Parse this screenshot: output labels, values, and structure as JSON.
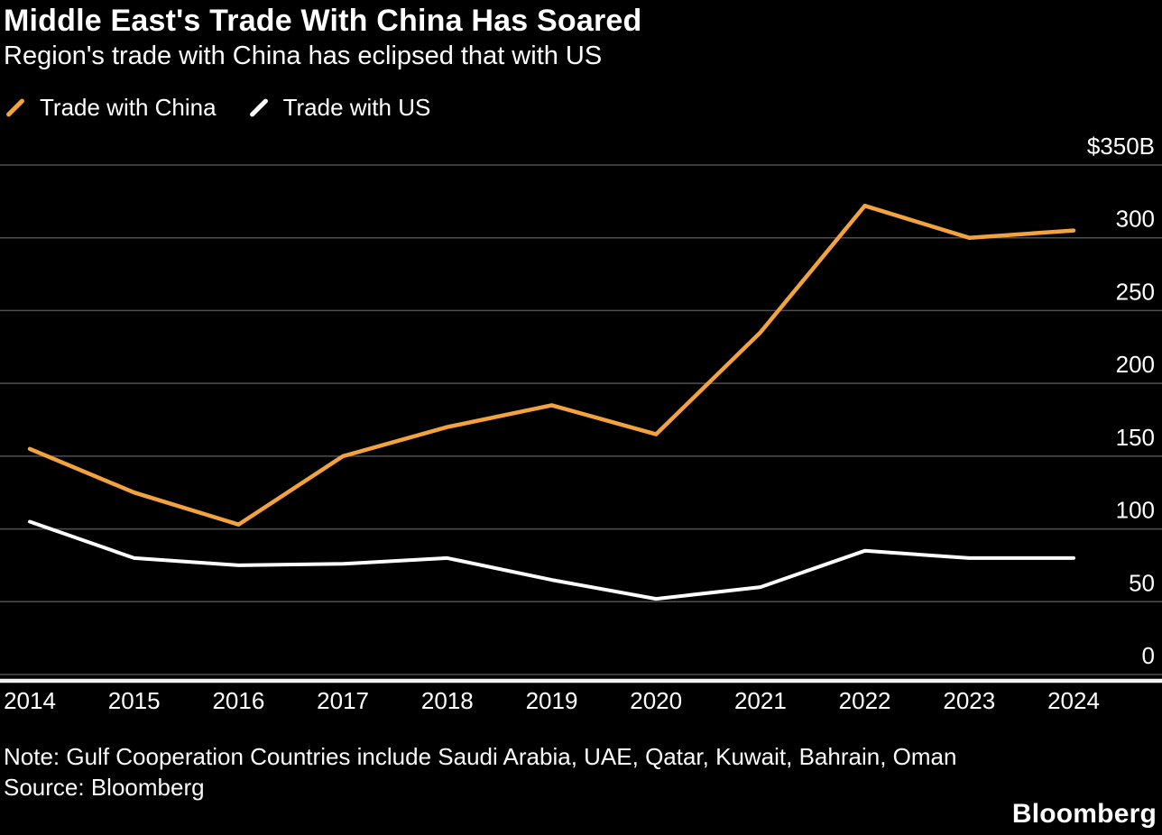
{
  "header": {
    "title": "Middle East's Trade With China Has Soared",
    "subtitle": "Region's trade with China has eclipsed that with US"
  },
  "legend": {
    "items": [
      {
        "label": "Trade with China",
        "color": "#F2A23E"
      },
      {
        "label": "Trade with US",
        "color": "#FFFFFF"
      }
    ]
  },
  "chart_data": {
    "type": "line",
    "title": "Middle East's Trade With China Has Soared",
    "subtitle": "Region's trade with China has eclipsed that with US",
    "xlabel": "",
    "ylabel": "",
    "unit": "$B",
    "grid": true,
    "legend_position": "top-left",
    "y_axis_side": "right",
    "ylim": [
      0,
      350
    ],
    "x": [
      2014,
      2015,
      2016,
      2017,
      2018,
      2019,
      2020,
      2021,
      2022,
      2023,
      2024
    ],
    "series": [
      {
        "name": "Trade with China",
        "color": "#F2A23E",
        "values": [
          155,
          125,
          103,
          150,
          170,
          185,
          165,
          235,
          322,
          300,
          305
        ]
      },
      {
        "name": "Trade with US",
        "color": "#FFFFFF",
        "values": [
          105,
          80,
          75,
          76,
          80,
          65,
          52,
          60,
          85,
          80,
          80
        ]
      }
    ],
    "y_ticks": [
      {
        "value": 350,
        "label": "$350B"
      },
      {
        "value": 300,
        "label": "300"
      },
      {
        "value": 250,
        "label": "250"
      },
      {
        "value": 200,
        "label": "200"
      },
      {
        "value": 150,
        "label": "150"
      },
      {
        "value": 100,
        "label": "100"
      },
      {
        "value": 50,
        "label": "50"
      },
      {
        "value": 0,
        "label": "0"
      }
    ],
    "colors": {
      "background": "#000000",
      "gridline": "#4f4f4f",
      "axis_line": "#f2f2f2",
      "tick_text": "#ffffff"
    }
  },
  "footer": {
    "note": "Note: Gulf Cooperation Countries include Saudi Arabia, UAE, Qatar, Kuwait, Bahrain, Oman",
    "source": "Source: Bloomberg",
    "logo": "Bloomberg"
  }
}
